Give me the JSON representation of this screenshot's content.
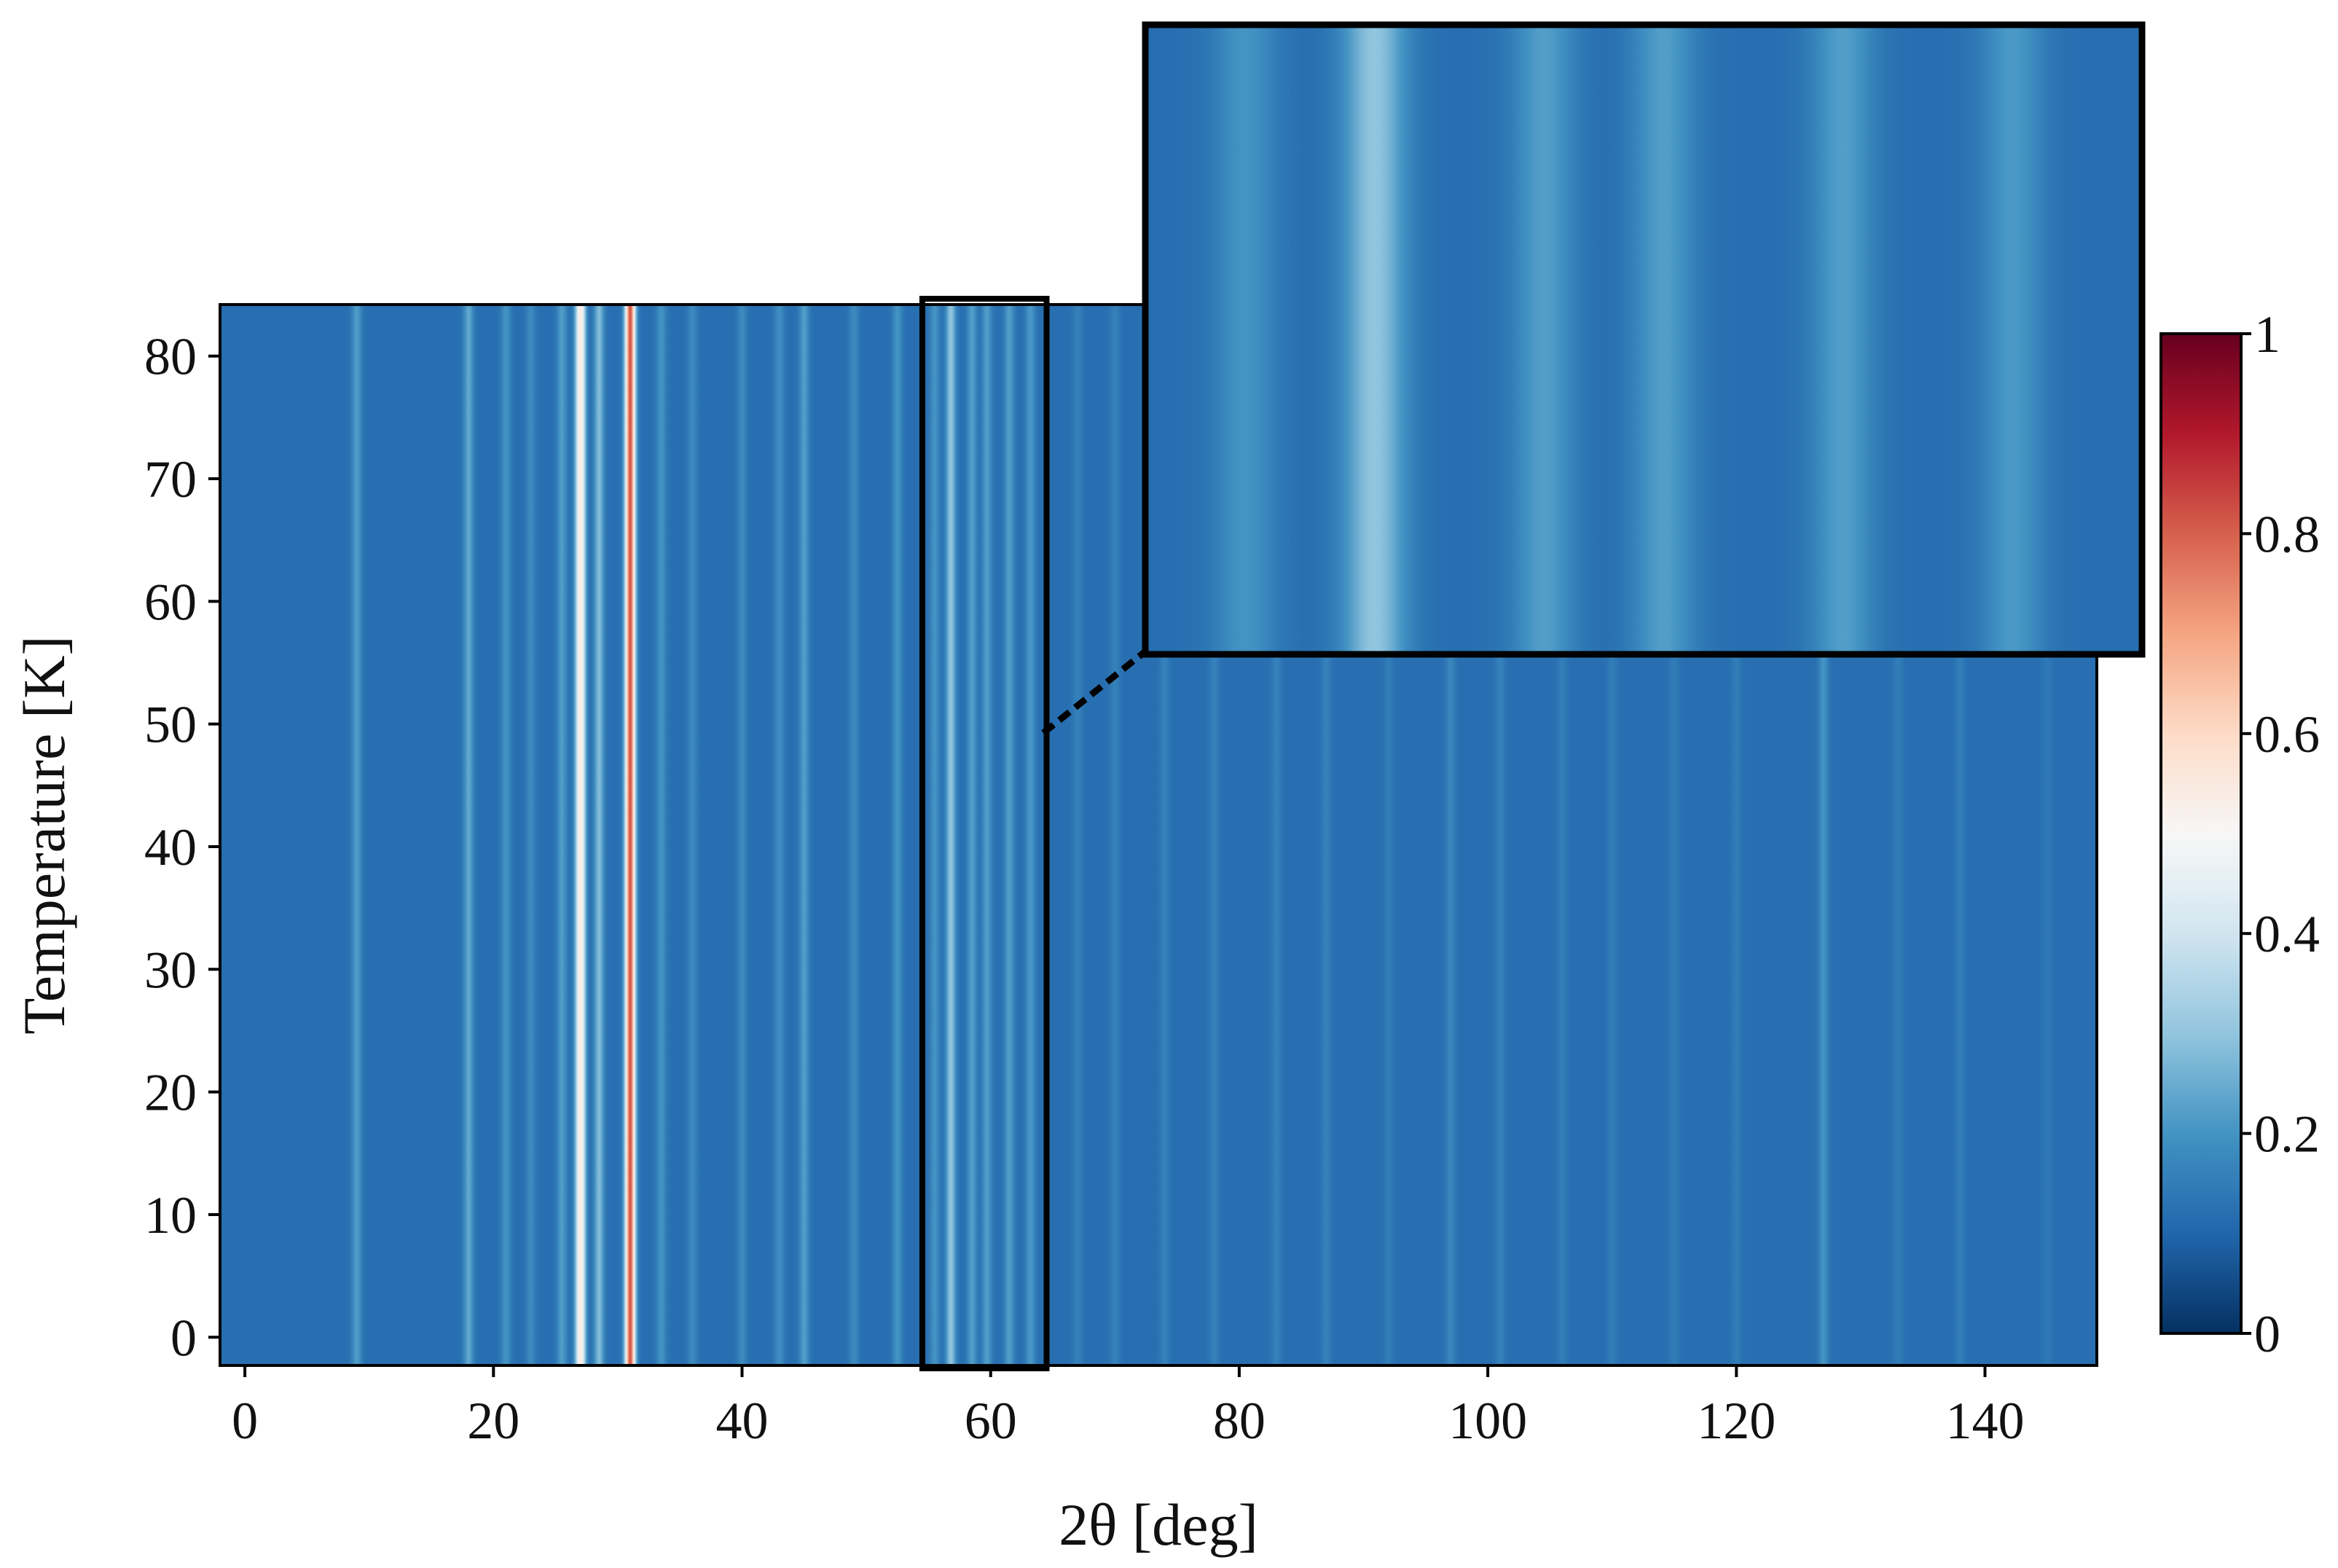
{
  "chart_data": {
    "type": "heatmap",
    "title": "",
    "xlabel": "2θ [deg]",
    "ylabel": "Temperature [K]",
    "xlim": [
      -2,
      149
    ],
    "ylim": [
      -2.3,
      84.2
    ],
    "xticks": [
      0,
      20,
      40,
      60,
      80,
      100,
      120,
      140
    ],
    "xtick_labels": [
      "0",
      "20",
      "40",
      "60",
      "80",
      "100",
      "120",
      "140"
    ],
    "yticks": [
      0,
      10,
      20,
      30,
      40,
      50,
      60,
      70,
      80
    ],
    "ytick_labels": [
      "0",
      "10",
      "20",
      "30",
      "40",
      "50",
      "60",
      "70",
      "80"
    ],
    "colorbar": {
      "colormap": "RdBu_r",
      "range": [
        0,
        1
      ],
      "ticks": [
        0,
        0.2,
        0.4,
        0.6,
        0.8,
        1
      ],
      "tick_labels": [
        "0",
        "0.2",
        "0.4",
        "0.6",
        "0.8",
        "1"
      ]
    },
    "background_intensity": 0.12,
    "peaks": [
      {
        "x": 0.5,
        "intensity": 0.04
      },
      {
        "x": 2.2,
        "intensity": 0.02
      },
      {
        "x": 9,
        "intensity": 0.22
      },
      {
        "x": 18,
        "intensity": 0.24
      },
      {
        "x": 21,
        "intensity": 0.2
      },
      {
        "x": 23,
        "intensity": 0.18
      },
      {
        "x": 25.5,
        "intensity": 0.22
      },
      {
        "x": 27,
        "intensity": 0.55
      },
      {
        "x": 28.5,
        "intensity": 0.28
      },
      {
        "x": 31,
        "intensity": 0.82
      },
      {
        "x": 33.5,
        "intensity": 0.2
      },
      {
        "x": 36,
        "intensity": 0.18
      },
      {
        "x": 40,
        "intensity": 0.18
      },
      {
        "x": 43,
        "intensity": 0.19
      },
      {
        "x": 45,
        "intensity": 0.22
      },
      {
        "x": 49,
        "intensity": 0.18
      },
      {
        "x": 52.5,
        "intensity": 0.2
      },
      {
        "x": 55.5,
        "intensity": 0.2
      },
      {
        "x": 56.8,
        "intensity": 0.3
      },
      {
        "x": 58.5,
        "intensity": 0.22
      },
      {
        "x": 59.7,
        "intensity": 0.22
      },
      {
        "x": 61.5,
        "intensity": 0.22
      },
      {
        "x": 63.2,
        "intensity": 0.21
      },
      {
        "x": 67,
        "intensity": 0.16
      },
      {
        "x": 70,
        "intensity": 0.16
      },
      {
        "x": 74,
        "intensity": 0.16
      },
      {
        "x": 78,
        "intensity": 0.16
      },
      {
        "x": 83,
        "intensity": 0.16
      },
      {
        "x": 87,
        "intensity": 0.16
      },
      {
        "x": 92,
        "intensity": 0.15
      },
      {
        "x": 97,
        "intensity": 0.17
      },
      {
        "x": 101,
        "intensity": 0.16
      },
      {
        "x": 106,
        "intensity": 0.15
      },
      {
        "x": 110,
        "intensity": 0.15
      },
      {
        "x": 115,
        "intensity": 0.15
      },
      {
        "x": 120,
        "intensity": 0.15
      },
      {
        "x": 127,
        "intensity": 0.2
      },
      {
        "x": 133,
        "intensity": 0.15
      },
      {
        "x": 138,
        "intensity": 0.15
      },
      {
        "x": 145,
        "intensity": 0.14
      }
    ],
    "zoom_region": {
      "x": [
        54.5,
        64.5
      ],
      "y": [
        -2.3,
        84.2
      ]
    }
  }
}
